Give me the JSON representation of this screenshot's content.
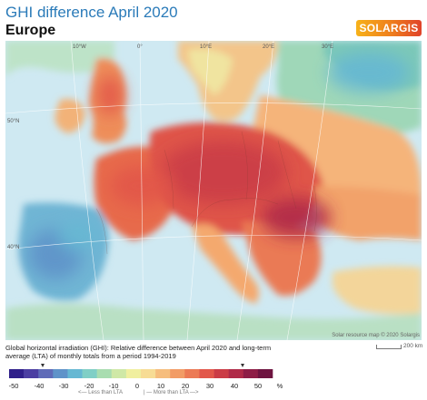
{
  "title": "GHI difference April 2020",
  "subtitle": "Europe",
  "logo_text": "SOLARGIS",
  "map": {
    "meridian_labels": [
      "10°W",
      "0°",
      "10°E",
      "20°E",
      "30°E"
    ],
    "parallel_labels": [
      "50°N",
      "40°N"
    ],
    "credit": "Solar resource map © 2020 Solargis",
    "scale_label": "200 km"
  },
  "description": "Global horizontal irradiation (GHI): Relative difference between April 2020 and long-term average (LTA) of monthly totals from a period 1994-2019",
  "legend": {
    "unit": "%",
    "ticks": [
      "-50",
      "-40",
      "-30",
      "-20",
      "-10",
      "0",
      "10",
      "20",
      "30",
      "40",
      "50"
    ],
    "less_label": "Less than LTA",
    "more_label": "More than LTA",
    "colors": [
      "#2f1f8a",
      "#4b3ea2",
      "#5f6bb8",
      "#5f93c9",
      "#66b8d3",
      "#80cfc6",
      "#a9ddb0",
      "#cfe8a6",
      "#f0ef9f",
      "#f7dc95",
      "#f6bd7d",
      "#f29c66",
      "#ec7a55",
      "#e2574a",
      "#cb3c46",
      "#b02a48",
      "#8e1d46",
      "#6e1440"
    ]
  }
}
